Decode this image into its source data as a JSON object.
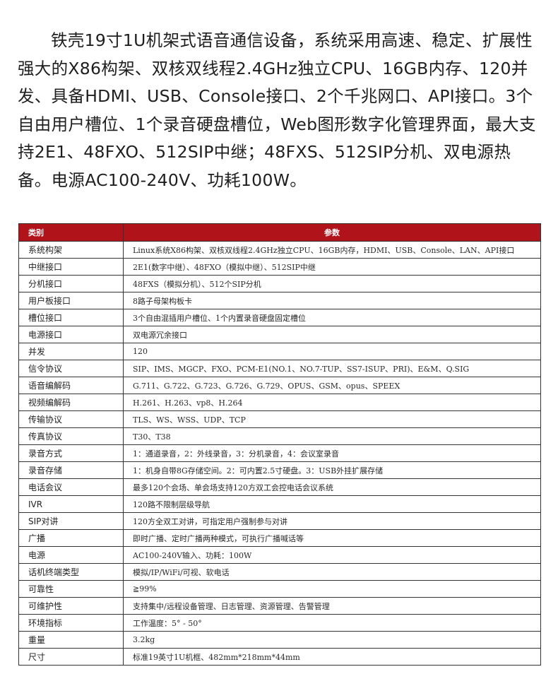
{
  "intro": "铁壳19寸1U机架式语音通信设备，系统采用高速、稳定、扩展性强大的X86构架、双核双线程2.4GHz独立CPU、16GB内存、120并发、具备HDMI、USB、Console接口、2个千兆网口、API接口。3个自由用户槽位、1个录音硬盘槽位，Web图形数字化管理界面，最大支持2E1、48FXO、512SIP中继；48FXS、512SIP分机、双电源热备。电源AC100-240V、功耗100W。",
  "table": {
    "header": {
      "category": "类别",
      "params": "参数"
    },
    "header_color": "#b0131a",
    "rows": [
      {
        "k": "系统构架",
        "v": "Linux系统X86构架、双核双线程2.4GHz独立CPU、16GB内存，HDMI、USB、Console、LAN、API接口"
      },
      {
        "k": "中继接口",
        "v": "2E1(数字中继）、48FXO（模拟中继）、512SIP中继"
      },
      {
        "k": "分机接口",
        "v": "48FXS（模拟分机）、512个SIP分机"
      },
      {
        "k": "用户板接口",
        "v": "8路子母架构板卡"
      },
      {
        "k": "槽位接口",
        "v": "3个自由混插用户槽位、1个内置录音硬盘固定槽位"
      },
      {
        "k": "电源接口",
        "v": "双电源冗余接口"
      },
      {
        "k": "并发",
        "v": "120"
      },
      {
        "k": "信令协议",
        "v": "SIP、IMS、MGCP、FXO、PCM-E1(NO.1、NO.7-TUP、SS7-ISUP、PRI)、E&M、Q.SIG"
      },
      {
        "k": "语音编解码",
        "v": "G.711、G.722、G.723、G.726、G.729、OPUS、GSM、opus、SPEEX"
      },
      {
        "k": "视频编解码",
        "v": "H.261、H.263、vp8、H.264"
      },
      {
        "k": "传输协议",
        "v": "TLS、WS、WSS、UDP、TCP"
      },
      {
        "k": "传真协议",
        "v": "T30、T38"
      },
      {
        "k": "录音方式",
        "v": "1：通道录音，2：外线录音，3：分机录音，4：会议室录音"
      },
      {
        "k": "录音存储",
        "v": "1：机身自带8G存储空间。2：可内置2.5寸硬盘。3：USB外挂扩展存储"
      },
      {
        "k": "电话会议",
        "v": "最多120个会场、单会场支持120方双工会控电话会议系统"
      },
      {
        "k": "IVR",
        "v": "120路不限制层级导航"
      },
      {
        "k": "SIP对讲",
        "v": "120方全双工对讲，可指定用户强制参与对讲"
      },
      {
        "k": "广播",
        "v": "即时广播、定时广播两种模式，可执行广播喊话等"
      },
      {
        "k": "电源",
        "v": "AC100-240V输入、功耗：100W"
      },
      {
        "k": "话机终端类型",
        "v": "模拟/IP/WiFi/可视、软电话"
      },
      {
        "k": "可靠性",
        "v": "≧99%"
      },
      {
        "k": "可维护性",
        "v": "支持集中/远程设备管理、日志管理、资源管理、告警管理"
      },
      {
        "k": "环境指标",
        "v": "工作温度：5° - 50°"
      },
      {
        "k": "重量",
        "v": "3.2kg"
      },
      {
        "k": "尺寸",
        "v": "标准19英寸1U机框、482mm*218mm*44mm"
      }
    ]
  }
}
